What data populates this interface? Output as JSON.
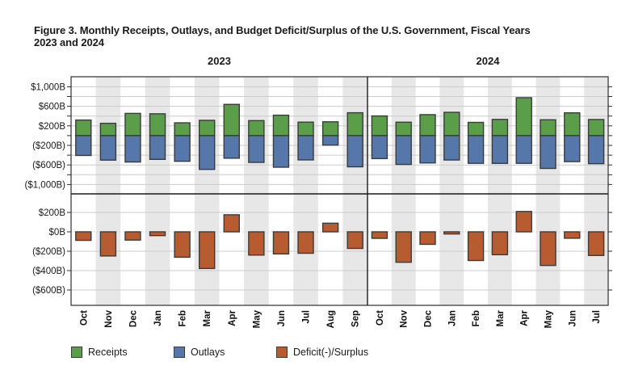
{
  "figure": {
    "title_line1": "Figure 3. Monthly Receipts, Outlays, and Budget Deficit/Surplus of the U.S. Government, Fiscal Years",
    "title_line2": "2023 and 2024"
  },
  "colors": {
    "receipts": "#5a9e4a",
    "outlays": "#5577aa",
    "deficit_surplus": "#b75c30",
    "bar_border": "#3b3b3b",
    "gridline": "#cbcbcb",
    "stripe": "#e7e7e7",
    "axis": "#2e2e2e",
    "text": "#1a1a1a"
  },
  "legend": [
    {
      "label": "Receipts",
      "color": "#5a9e4a"
    },
    {
      "label": "Outlays",
      "color": "#5577aa"
    },
    {
      "label": "Deficit(-)/Surplus",
      "color": "#b75c30"
    }
  ],
  "chart_data": {
    "type": "bar",
    "title": "Figure 3. Monthly Receipts, Outlays, and Budget Deficit/Surplus of the U.S. Government, Fiscal Years 2023 and 2024",
    "unit": "billions of dollars",
    "grid": true,
    "legend_position": "bottom",
    "top_panel": {
      "description": "Receipts plotted upward and Outlays plotted downward from $0",
      "ylim": [
        -1000,
        1000
      ],
      "tick_values": [
        1000,
        600,
        200,
        -200,
        -600,
        -1000
      ],
      "tick_labels": [
        "$1,000B",
        "$600B",
        "$200B",
        "($200B)",
        "($600B)",
        "($1,000B)"
      ],
      "minor_tick_values": [
        800,
        400,
        0,
        -400,
        -800
      ]
    },
    "bottom_panel": {
      "description": "Deficit(-)/Surplus",
      "ylim": [
        -600,
        200
      ],
      "tick_values": [
        200,
        0,
        -200,
        -400,
        -600
      ],
      "tick_labels": [
        "$200B",
        "$0B",
        "($200B)",
        "($400B)",
        "($600B)"
      ]
    },
    "fiscal_years": [
      {
        "label": "2023",
        "months": [
          "Oct",
          "Nov",
          "Dec",
          "Jan",
          "Feb",
          "Mar",
          "Apr",
          "May",
          "Jun",
          "Jul",
          "Aug",
          "Sep"
        ],
        "receipts": [
          319,
          252,
          455,
          447,
          262,
          313,
          639,
          307,
          418,
          276,
          283,
          468
        ],
        "outlays": [
          406,
          501,
          540,
          486,
          525,
          691,
          462,
          548,
          646,
          497,
          194,
          638
        ],
        "deficit_surplus": [
          -88,
          -249,
          -85,
          -39,
          -262,
          -378,
          176,
          -240,
          -228,
          -221,
          89,
          -171
        ]
      },
      {
        "label": "2024",
        "months": [
          "Oct",
          "Nov",
          "Dec",
          "Jan",
          "Feb",
          "Mar",
          "Apr",
          "May",
          "Jun",
          "Jul"
        ],
        "receipts": [
          403,
          275,
          429,
          477,
          271,
          332,
          776,
          324,
          466,
          330
        ],
        "outlays": [
          470,
          589,
          559,
          499,
          567,
          568,
          567,
          671,
          532,
          574
        ],
        "deficit_surplus": [
          -67,
          -314,
          -129,
          -22,
          -296,
          -236,
          210,
          -347,
          -66,
          -244
        ]
      }
    ]
  }
}
